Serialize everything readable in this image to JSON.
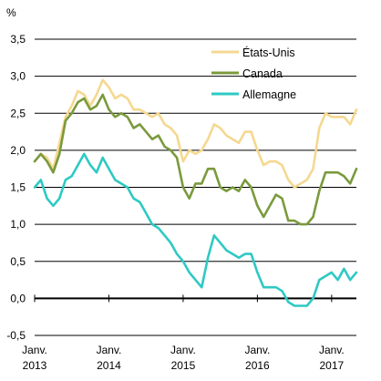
{
  "chart_data": {
    "type": "line",
    "y_unit": "%",
    "ylim": [
      -0.5,
      3.5
    ],
    "y_ticks": [
      "3,5",
      "3,0",
      "2,5",
      "2,0",
      "1,5",
      "1,0",
      "0,5",
      "0,0",
      "-0,5"
    ],
    "y_tick_values": [
      3.5,
      3.0,
      2.5,
      2.0,
      1.5,
      1.0,
      0.5,
      0.0,
      -0.5
    ],
    "grid": "horizontal",
    "legend_position": "top-right",
    "x_range": [
      "2013-01",
      "2017-05"
    ],
    "x_ticks": [
      {
        "date": "2013-01",
        "line1": "Janv.",
        "line2": "2013"
      },
      {
        "date": "2014-01",
        "line1": "Janv.",
        "line2": "2014"
      },
      {
        "date": "2015-01",
        "line1": "Janv.",
        "line2": "2015"
      },
      {
        "date": "2016-01",
        "line1": "Janv.",
        "line2": "2016"
      },
      {
        "date": "2017-01",
        "line1": "Janv.",
        "line2": "2017"
      }
    ],
    "x": [
      "2013-01",
      "2013-02",
      "2013-03",
      "2013-04",
      "2013-05",
      "2013-06",
      "2013-07",
      "2013-08",
      "2013-09",
      "2013-10",
      "2013-11",
      "2013-12",
      "2014-01",
      "2014-02",
      "2014-03",
      "2014-04",
      "2014-05",
      "2014-06",
      "2014-07",
      "2014-08",
      "2014-09",
      "2014-10",
      "2014-11",
      "2014-12",
      "2015-01",
      "2015-02",
      "2015-03",
      "2015-04",
      "2015-05",
      "2015-06",
      "2015-07",
      "2015-08",
      "2015-09",
      "2015-10",
      "2015-11",
      "2015-12",
      "2016-01",
      "2016-02",
      "2016-03",
      "2016-04",
      "2016-05",
      "2016-06",
      "2016-07",
      "2016-08",
      "2016-09",
      "2016-10",
      "2016-11",
      "2016-12",
      "2017-01",
      "2017-02",
      "2017-03",
      "2017-04",
      "2017-05"
    ],
    "series": [
      {
        "name": "États-Unis",
        "color": "#f5d890",
        "values": [
          1.85,
          1.95,
          1.9,
          1.75,
          2.1,
          2.45,
          2.6,
          2.8,
          2.75,
          2.6,
          2.75,
          2.95,
          2.85,
          2.7,
          2.75,
          2.7,
          2.55,
          2.55,
          2.5,
          2.45,
          2.5,
          2.35,
          2.3,
          2.2,
          1.85,
          2.0,
          1.95,
          2.0,
          2.15,
          2.35,
          2.3,
          2.2,
          2.15,
          2.1,
          2.25,
          2.25,
          2.0,
          1.8,
          1.85,
          1.85,
          1.8,
          1.6,
          1.5,
          1.55,
          1.6,
          1.75,
          2.3,
          2.5,
          2.45,
          2.45,
          2.45,
          2.35,
          2.55
        ]
      },
      {
        "name": "Canada",
        "color": "#7a9a3c",
        "values": [
          1.85,
          1.95,
          1.85,
          1.7,
          1.95,
          2.4,
          2.5,
          2.65,
          2.7,
          2.55,
          2.6,
          2.75,
          2.55,
          2.45,
          2.5,
          2.45,
          2.3,
          2.35,
          2.25,
          2.15,
          2.2,
          2.05,
          2.0,
          1.9,
          1.5,
          1.35,
          1.55,
          1.55,
          1.75,
          1.75,
          1.5,
          1.45,
          1.5,
          1.45,
          1.6,
          1.5,
          1.25,
          1.1,
          1.25,
          1.4,
          1.35,
          1.05,
          1.05,
          1.0,
          1.0,
          1.1,
          1.45,
          1.7,
          1.7,
          1.7,
          1.65,
          1.55,
          1.75
        ]
      },
      {
        "name": "Allemagne",
        "color": "#2ec9c4",
        "values": [
          1.5,
          1.6,
          1.35,
          1.25,
          1.35,
          1.6,
          1.65,
          1.8,
          1.95,
          1.8,
          1.7,
          1.9,
          1.75,
          1.6,
          1.55,
          1.5,
          1.35,
          1.3,
          1.15,
          1.0,
          0.95,
          0.85,
          0.75,
          0.6,
          0.5,
          0.35,
          0.25,
          0.15,
          0.55,
          0.85,
          0.75,
          0.65,
          0.6,
          0.55,
          0.6,
          0.6,
          0.35,
          0.15,
          0.15,
          0.15,
          0.1,
          -0.05,
          -0.1,
          -0.1,
          -0.1,
          0.0,
          0.25,
          0.3,
          0.35,
          0.25,
          0.4,
          0.25,
          0.35
        ]
      }
    ]
  }
}
